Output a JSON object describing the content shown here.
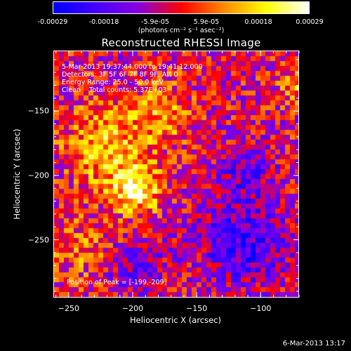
{
  "colorbar": {
    "ticks": [
      "-0.00029",
      "-0.00018",
      "-5.9e-05",
      "5.9e-05",
      "0.00018",
      "0.00029"
    ],
    "unit": "(photons cm⁻² s⁻¹ asec⁻²)",
    "colors": [
      "#0000ff",
      "#4400ff",
      "#8800dd",
      "#ff0000",
      "#ff8800",
      "#ffff00",
      "#ffffff"
    ]
  },
  "header": {
    "title": "Reconstructed RHESSI Image",
    "time_range": "5-Mar-2013 19:37:44.000 to 19:41:12.000",
    "detectors": "Detectors: 3F 5F 6F 7F 8F 9F, Att 0",
    "energy": "Energy Range: 25.0 - 50.0 keV",
    "clean": "Clean    Total counts: 5.37E+03",
    "peak": "Position of Peak = [-199,-209]"
  },
  "chart_data": {
    "type": "heatmap",
    "title": "Reconstructed RHESSI Image",
    "xlabel": "Heliocentric X (arcsec)",
    "ylabel": "Heliocentric Y (arcsec)",
    "xlim": [
      -262,
      -70
    ],
    "ylim": [
      -295,
      -103
    ],
    "xticks": [
      -250,
      -200,
      -150,
      -100
    ],
    "yticks": [
      -150,
      -200,
      -250
    ],
    "value_range": [
      -0.00029,
      0.00029
    ],
    "peak": [
      -199,
      -209
    ]
  },
  "footer": {
    "date": "6-Mar-2013 13:17"
  }
}
